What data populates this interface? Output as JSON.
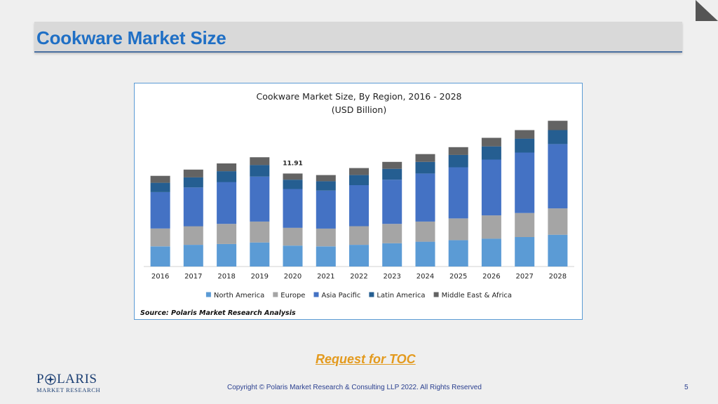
{
  "slide": {
    "title": "Cookware Market Size",
    "toc_link": "Request for TOC",
    "copyright": "Copyright © Polaris Market Research & Consulting LLP 2022. All Rights Reserved",
    "page_number": "5",
    "logo": {
      "brand_left": "P",
      "brand_right": "LARIS",
      "subtitle": "MARKET RESEARCH"
    },
    "corner_icon": "page-fold-triangle"
  },
  "chart_data": {
    "type": "bar",
    "stacked": true,
    "title": "Cookware Market Size, By Region, 2016 - 2028",
    "subtitle": "(USD Billion)",
    "categories": [
      "2016",
      "2017",
      "2018",
      "2019",
      "2020",
      "2021",
      "2022",
      "2023",
      "2024",
      "2025",
      "2026",
      "2027",
      "2028"
    ],
    "series": [
      {
        "name": "North America",
        "color": "#5b9bd5",
        "values": [
          2.6,
          2.8,
          2.9,
          3.1,
          2.7,
          2.6,
          2.8,
          3.0,
          3.2,
          3.4,
          3.6,
          3.8,
          4.1
        ]
      },
      {
        "name": "Europe",
        "color": "#a5a5a5",
        "values": [
          2.3,
          2.4,
          2.6,
          2.7,
          2.3,
          2.3,
          2.4,
          2.5,
          2.6,
          2.8,
          3.0,
          3.1,
          3.4
        ]
      },
      {
        "name": "Asia Pacific",
        "color": "#4472c4",
        "values": [
          4.7,
          5.0,
          5.4,
          5.8,
          5.0,
          4.9,
          5.3,
          5.7,
          6.2,
          6.6,
          7.2,
          7.8,
          8.3
        ]
      },
      {
        "name": "Latin America",
        "color": "#255e91",
        "values": [
          1.2,
          1.3,
          1.4,
          1.5,
          1.2,
          1.2,
          1.3,
          1.4,
          1.5,
          1.6,
          1.7,
          1.8,
          1.8
        ]
      },
      {
        "name": "Middle East & Africa",
        "color": "#636363",
        "values": [
          0.9,
          1.0,
          1.0,
          1.0,
          0.8,
          0.8,
          0.9,
          0.9,
          1.0,
          1.0,
          1.1,
          1.1,
          1.2
        ]
      }
    ],
    "annotations": [
      {
        "category": "2020",
        "label": "11.91"
      }
    ],
    "ylim": [
      0,
      19
    ],
    "grid": false,
    "legend_position": "bottom",
    "source": "Source: Polaris  Market Research Analysis"
  }
}
